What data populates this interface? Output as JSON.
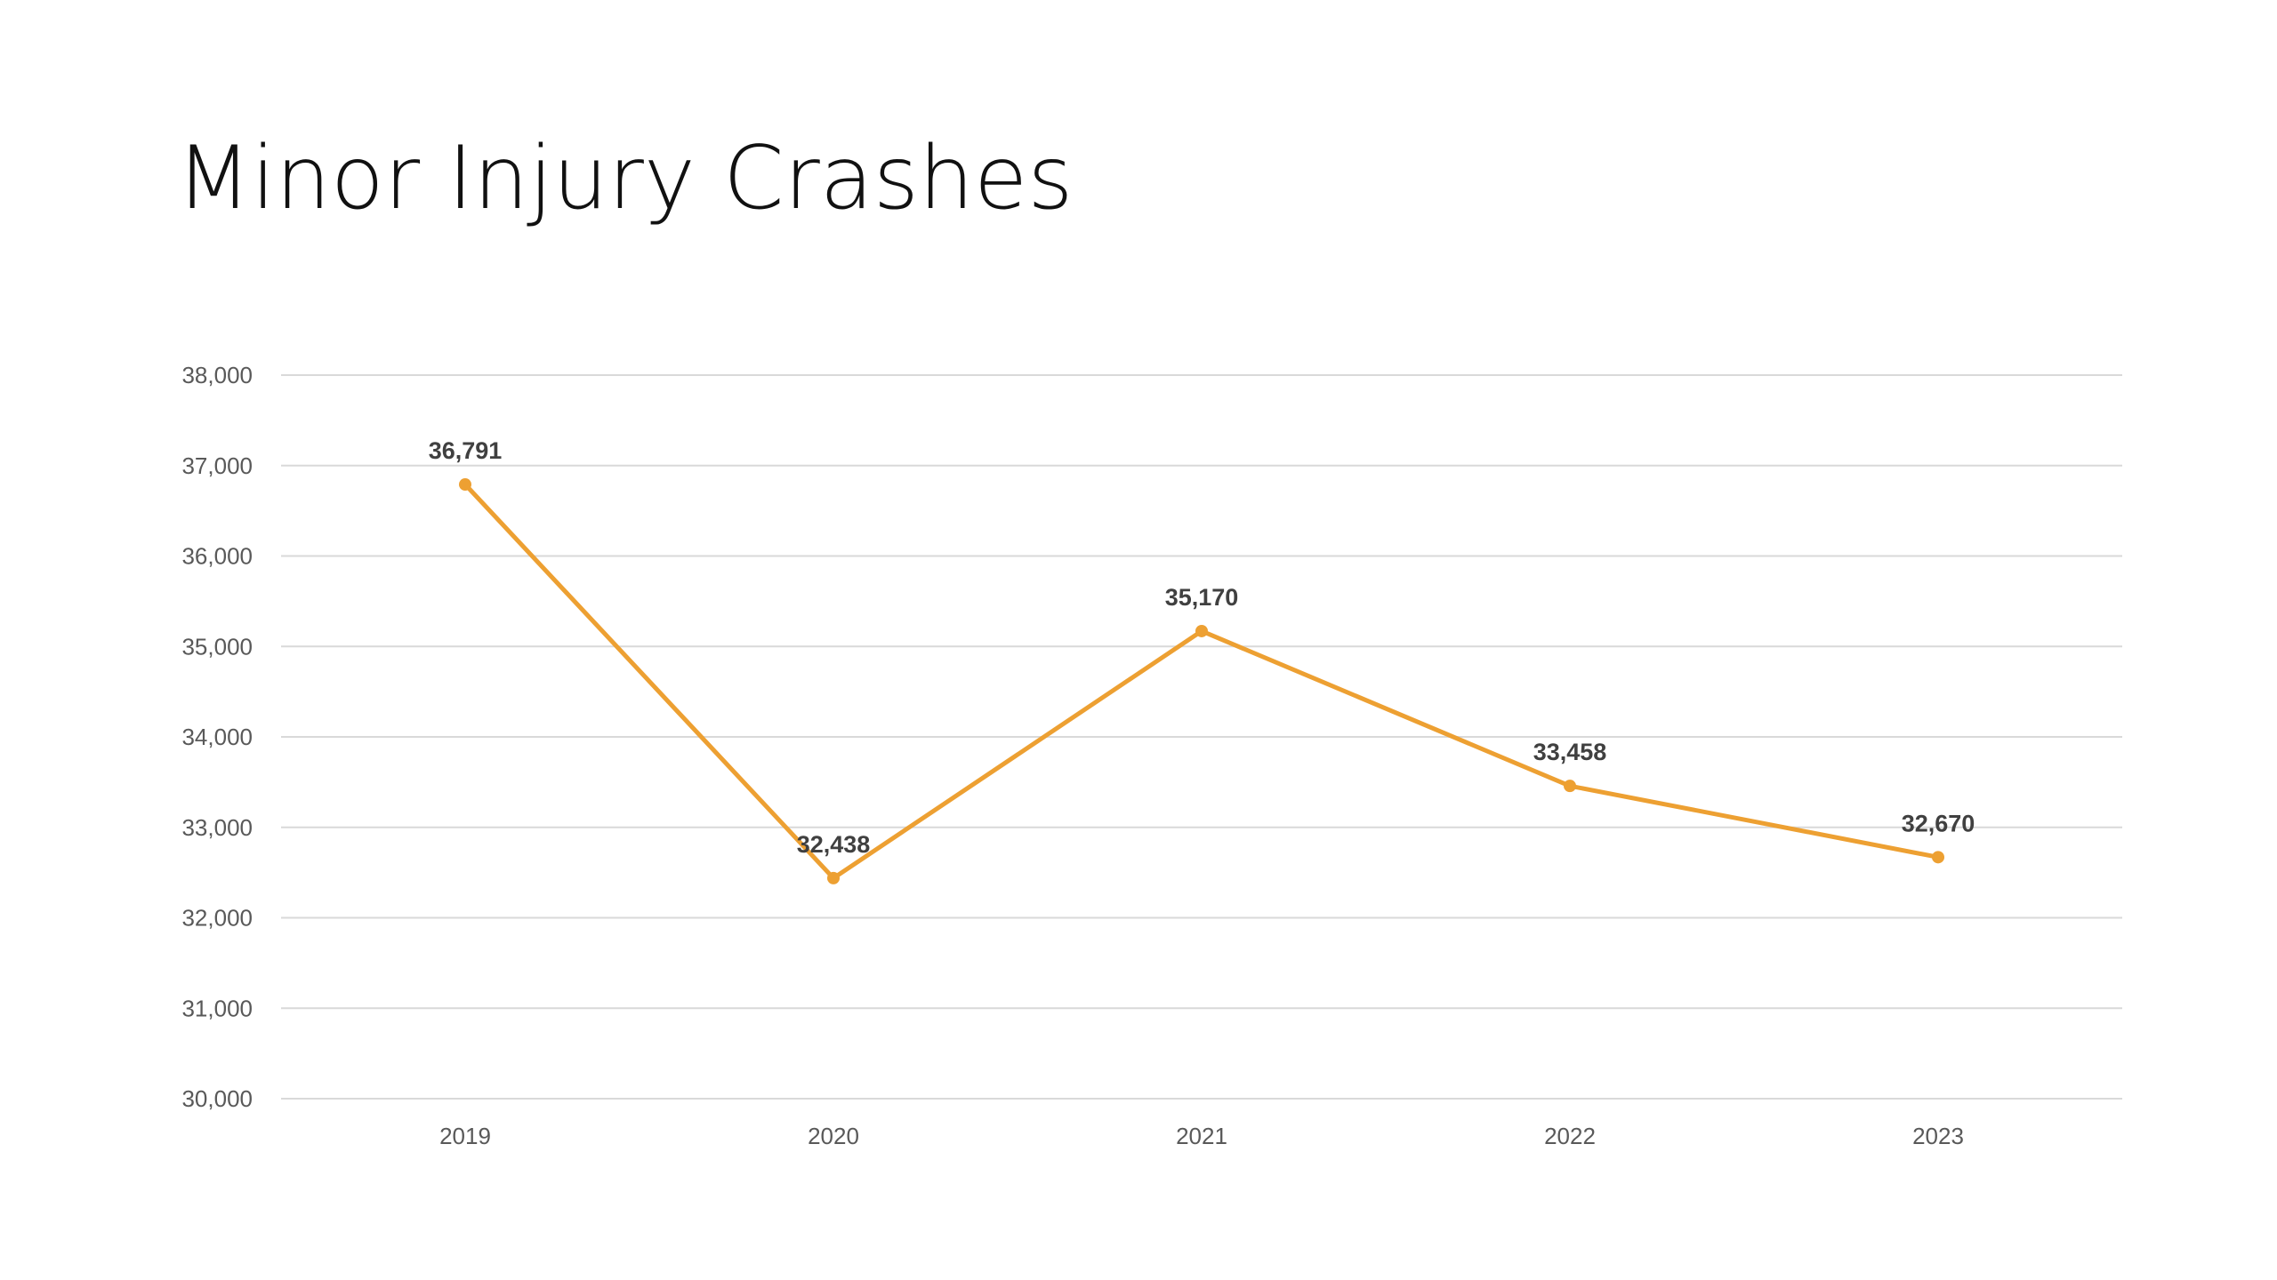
{
  "slide": {
    "title": "Minor Injury Crashes"
  },
  "chart_data": {
    "type": "line",
    "title": "",
    "xlabel": "",
    "ylabel": "",
    "categories": [
      "2019",
      "2020",
      "2021",
      "2022",
      "2023"
    ],
    "series": [
      {
        "values": [
          36791,
          32438,
          35170,
          33458,
          32670
        ],
        "labels": [
          "36,791",
          "32,438",
          "35,170",
          "33,458",
          "32,670"
        ],
        "color": "#EDA032"
      }
    ],
    "ylim": [
      30000,
      38000
    ],
    "yticks": [
      30000,
      31000,
      32000,
      33000,
      34000,
      35000,
      36000,
      37000,
      38000
    ],
    "ytick_labels": [
      "30,000",
      "31,000",
      "32,000",
      "33,000",
      "34,000",
      "35,000",
      "36,000",
      "37,000",
      "38,000"
    ],
    "grid": true,
    "legend": "none",
    "data_labels": "above"
  }
}
